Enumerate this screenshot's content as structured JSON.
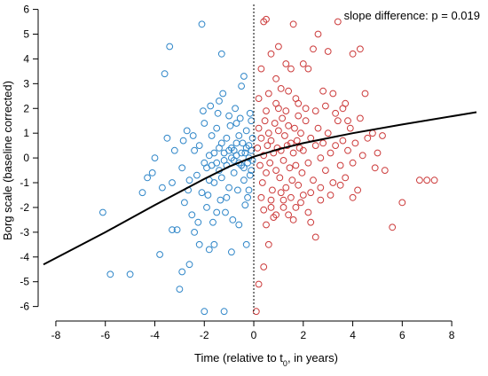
{
  "chart_data": {
    "type": "scatter",
    "annotation": "slope difference: p = 0.019",
    "xlabel_prefix": "Time (relative to t",
    "xlabel_sub": "0",
    "xlabel_suffix": ", in years)",
    "ylabel": "Borg scale (baseline corrected)",
    "xlim": [
      -8.5,
      9
    ],
    "ylim": [
      -6.3,
      6.2
    ],
    "xticks": [
      -8,
      -6,
      -4,
      -2,
      0,
      2,
      4,
      6,
      8
    ],
    "yticks": [
      -6,
      -5,
      -4,
      -3,
      -2,
      -1,
      0,
      1,
      2,
      3,
      4,
      5,
      6
    ],
    "reference_line_x": 0,
    "series": [
      {
        "color": "#2f86c8",
        "marker": "open-circle",
        "points": [
          [
            -6.1,
            -2.2
          ],
          [
            -5.8,
            -4.7
          ],
          [
            -5.0,
            -4.7
          ],
          [
            -4.5,
            -1.4
          ],
          [
            -4.1,
            -0.6
          ],
          [
            -3.8,
            -3.9
          ],
          [
            -3.6,
            3.4
          ],
          [
            -3.4,
            4.5
          ],
          [
            -3.3,
            -2.9
          ],
          [
            -3.1,
            -2.9
          ],
          [
            -3.0,
            -5.3
          ],
          [
            -2.9,
            -4.6
          ],
          [
            -2.7,
            1.1
          ],
          [
            -2.6,
            -4.3
          ],
          [
            -2.5,
            -2.3
          ],
          [
            -2.4,
            -3.0
          ],
          [
            -2.2,
            -3.5
          ],
          [
            -2.1,
            5.4
          ],
          [
            -2.0,
            -6.2
          ],
          [
            -1.9,
            -2.0
          ],
          [
            -1.8,
            -3.7
          ],
          [
            -1.7,
            0.9
          ],
          [
            -1.6,
            -3.5
          ],
          [
            -1.5,
            -2.2
          ],
          [
            -1.4,
            2.3
          ],
          [
            -1.3,
            4.2
          ],
          [
            -1.2,
            -6.2
          ],
          [
            -1.1,
            -1.6
          ],
          [
            -1.0,
            1.7
          ],
          [
            -0.9,
            -3.8
          ],
          [
            -0.8,
            0.3
          ],
          [
            -0.7,
            1.4
          ],
          [
            -0.6,
            -2.7
          ],
          [
            -0.5,
            2.9
          ],
          [
            -0.4,
            3.3
          ],
          [
            -0.3,
            -3.5
          ],
          [
            -0.2,
            -1.3
          ],
          [
            -0.1,
            1.5
          ],
          [
            -3.5,
            0.8
          ],
          [
            -3.2,
            0.3
          ],
          [
            -2.8,
            -1.8
          ],
          [
            -2.3,
            -0.7
          ],
          [
            -2.2,
            0.5
          ],
          [
            -2.0,
            1.4
          ],
          [
            -1.9,
            -0.4
          ],
          [
            -1.8,
            -0.9
          ],
          [
            -1.6,
            0.2
          ],
          [
            -1.5,
            1.2
          ],
          [
            -1.4,
            -0.5
          ],
          [
            -1.3,
            0.6
          ],
          [
            -1.2,
            -0.1
          ],
          [
            -1.1,
            0.8
          ],
          [
            -1.0,
            -1.2
          ],
          [
            -0.9,
            0.4
          ],
          [
            -0.8,
            -0.6
          ],
          [
            -0.7,
            0.1
          ],
          [
            -0.6,
            0.9
          ],
          [
            -0.5,
            -0.3
          ],
          [
            -0.45,
            0.6
          ],
          [
            -0.4,
            -0.9
          ],
          [
            -0.35,
            0.2
          ],
          [
            -0.3,
            1.1
          ],
          [
            -0.25,
            -0.2
          ],
          [
            -0.2,
            0.5
          ],
          [
            -0.15,
            -0.7
          ],
          [
            -0.1,
            0.3
          ],
          [
            -0.05,
            -0.1
          ],
          [
            -0.05,
            0.8
          ],
          [
            -0.1,
            -0.5
          ],
          [
            -0.2,
            0.0
          ],
          [
            -0.3,
            0.4
          ],
          [
            -0.4,
            -0.4
          ],
          [
            -0.5,
            0.2
          ],
          [
            -0.6,
            -0.2
          ],
          [
            -0.7,
            0.6
          ],
          [
            -0.8,
            -0.1
          ],
          [
            -0.9,
            0.0
          ],
          [
            -1.0,
            0.3
          ],
          [
            -1.1,
            -0.3
          ],
          [
            -1.2,
            0.2
          ],
          [
            -1.3,
            -0.8
          ],
          [
            -1.4,
            0.4
          ],
          [
            -1.5,
            -0.2
          ],
          [
            -1.6,
            -1.0
          ],
          [
            -1.7,
            -0.3
          ],
          [
            -1.8,
            0.1
          ],
          [
            -2.0,
            -0.2
          ],
          [
            -2.1,
            -1.4
          ],
          [
            -2.4,
            0.3
          ],
          [
            -2.6,
            -0.9
          ],
          [
            -2.9,
            -0.4
          ],
          [
            -3.3,
            -1.0
          ],
          [
            -3.7,
            -1.2
          ],
          [
            -4.0,
            0.0
          ],
          [
            -4.3,
            -0.8
          ],
          [
            -0.25,
            -1.6
          ],
          [
            -0.15,
            1.8
          ],
          [
            -0.35,
            -1.9
          ],
          [
            -0.55,
            1.6
          ],
          [
            -0.65,
            -1.3
          ],
          [
            -0.75,
            2.0
          ],
          [
            -0.85,
            -2.5
          ],
          [
            -0.95,
            1.3
          ],
          [
            -1.15,
            -2.2
          ],
          [
            -1.25,
            2.6
          ],
          [
            -1.35,
            -1.7
          ],
          [
            -1.45,
            1.8
          ],
          [
            -1.65,
            -2.6
          ],
          [
            -1.75,
            2.1
          ],
          [
            -1.85,
            -1.5
          ],
          [
            -2.05,
            1.9
          ],
          [
            -2.25,
            -2.6
          ],
          [
            -2.45,
            0.9
          ],
          [
            -2.65,
            -1.3
          ],
          [
            -2.85,
            0.7
          ]
        ]
      },
      {
        "color": "#cc3b3b",
        "marker": "open-circle",
        "points": [
          [
            0.1,
            -6.2
          ],
          [
            0.3,
            3.6
          ],
          [
            0.4,
            5.5
          ],
          [
            0.5,
            5.6
          ],
          [
            0.6,
            -3.5
          ],
          [
            0.7,
            4.2
          ],
          [
            0.9,
            3.2
          ],
          [
            1.0,
            4.5
          ],
          [
            1.1,
            2.8
          ],
          [
            1.3,
            3.8
          ],
          [
            1.5,
            3.6
          ],
          [
            1.6,
            5.4
          ],
          [
            1.8,
            2.2
          ],
          [
            2.0,
            3.8
          ],
          [
            2.2,
            3.6
          ],
          [
            2.4,
            4.4
          ],
          [
            2.6,
            5.0
          ],
          [
            2.7,
            -1.7
          ],
          [
            2.8,
            2.7
          ],
          [
            3.0,
            4.3
          ],
          [
            3.2,
            2.6
          ],
          [
            3.4,
            5.5
          ],
          [
            3.6,
            2.0
          ],
          [
            3.8,
            1.5
          ],
          [
            4.0,
            4.2
          ],
          [
            4.3,
            4.4
          ],
          [
            4.5,
            2.6
          ],
          [
            4.8,
            1.0
          ],
          [
            5.0,
            0.2
          ],
          [
            5.3,
            -0.5
          ],
          [
            5.6,
            -2.8
          ],
          [
            6.0,
            -1.8
          ],
          [
            6.7,
            -0.9
          ],
          [
            7.0,
            -0.9
          ],
          [
            7.3,
            -0.9
          ],
          [
            0.2,
            -5.1
          ],
          [
            0.4,
            -4.4
          ],
          [
            0.5,
            -2.7
          ],
          [
            0.7,
            -2.0
          ],
          [
            0.9,
            -2.3
          ],
          [
            1.2,
            -1.7
          ],
          [
            1.4,
            -2.3
          ],
          [
            1.7,
            -2.0
          ],
          [
            2.0,
            -1.5
          ],
          [
            2.3,
            -2.6
          ],
          [
            2.5,
            -3.2
          ],
          [
            0.15,
            0.4
          ],
          [
            0.2,
            1.2
          ],
          [
            0.25,
            -0.3
          ],
          [
            0.3,
            0.8
          ],
          [
            0.35,
            -1.0
          ],
          [
            0.4,
            0.1
          ],
          [
            0.45,
            1.5
          ],
          [
            0.5,
            -0.6
          ],
          [
            0.55,
            0.5
          ],
          [
            0.6,
            1.0
          ],
          [
            0.65,
            -0.2
          ],
          [
            0.7,
            0.7
          ],
          [
            0.75,
            -1.3
          ],
          [
            0.8,
            0.2
          ],
          [
            0.85,
            1.4
          ],
          [
            0.9,
            -0.5
          ],
          [
            0.95,
            0.4
          ],
          [
            1.0,
            1.1
          ],
          [
            1.05,
            -0.8
          ],
          [
            1.1,
            0.3
          ],
          [
            1.15,
            1.6
          ],
          [
            1.2,
            -0.1
          ],
          [
            1.25,
            0.9
          ],
          [
            1.3,
            -1.2
          ],
          [
            1.35,
            0.5
          ],
          [
            1.4,
            1.3
          ],
          [
            1.45,
            -0.4
          ],
          [
            1.5,
            0.6
          ],
          [
            1.55,
            -0.9
          ],
          [
            1.6,
            0.2
          ],
          [
            1.65,
            1.2
          ],
          [
            1.7,
            -0.3
          ],
          [
            1.75,
            0.7
          ],
          [
            1.8,
            -1.1
          ],
          [
            1.85,
            0.4
          ],
          [
            1.9,
            1.0
          ],
          [
            1.95,
            -0.6
          ],
          [
            2.0,
            0.3
          ],
          [
            2.1,
            1.5
          ],
          [
            2.2,
            -0.2
          ],
          [
            2.3,
            0.8
          ],
          [
            2.4,
            -0.9
          ],
          [
            2.5,
            0.5
          ],
          [
            2.6,
            1.2
          ],
          [
            2.7,
            0.0
          ],
          [
            2.8,
            0.6
          ],
          [
            2.9,
            -0.5
          ],
          [
            3.0,
            1.0
          ],
          [
            3.1,
            0.2
          ],
          [
            3.2,
            -1.0
          ],
          [
            3.3,
            0.5
          ],
          [
            3.4,
            1.5
          ],
          [
            3.5,
            -0.3
          ],
          [
            3.6,
            0.7
          ],
          [
            3.7,
            -0.8
          ],
          [
            3.8,
            0.3
          ],
          [
            3.9,
            1.2
          ],
          [
            4.0,
            -0.2
          ],
          [
            4.1,
            0.6
          ],
          [
            4.2,
            -1.3
          ],
          [
            4.4,
            0.1
          ],
          [
            4.6,
            0.8
          ],
          [
            4.9,
            -0.4
          ],
          [
            5.2,
            0.9
          ],
          [
            0.3,
            -1.6
          ],
          [
            0.5,
            1.9
          ],
          [
            0.7,
            -1.7
          ],
          [
            0.9,
            2.2
          ],
          [
            1.1,
            -1.4
          ],
          [
            1.3,
            1.9
          ],
          [
            1.5,
            -1.6
          ],
          [
            1.7,
            2.4
          ],
          [
            1.9,
            -1.8
          ],
          [
            2.1,
            2.0
          ],
          [
            2.3,
            -1.4
          ],
          [
            2.5,
            1.9
          ],
          [
            2.7,
            -1.2
          ],
          [
            2.9,
            2.1
          ],
          [
            3.1,
            -1.5
          ],
          [
            3.3,
            1.8
          ],
          [
            3.5,
            -1.1
          ],
          [
            3.7,
            2.2
          ],
          [
            4.0,
            -1.6
          ],
          [
            4.3,
            1.6
          ],
          [
            0.2,
            2.4
          ],
          [
            0.4,
            -2.1
          ],
          [
            0.6,
            2.6
          ],
          [
            0.8,
            -2.4
          ],
          [
            1.0,
            2.0
          ],
          [
            1.2,
            -2.0
          ],
          [
            1.4,
            2.7
          ],
          [
            1.6,
            -2.5
          ],
          [
            1.8,
            1.7
          ],
          [
            2.2,
            -2.2
          ]
        ]
      },
      {
        "type": "line",
        "color": "#000000",
        "points": [
          [
            -8.5,
            -4.3
          ],
          [
            -6,
            -3.0
          ],
          [
            -4,
            -1.9
          ],
          [
            -2,
            -0.85
          ],
          [
            -1,
            -0.35
          ],
          [
            0,
            0.05
          ],
          [
            1,
            0.35
          ],
          [
            2,
            0.6
          ],
          [
            4,
            1.0
          ],
          [
            6,
            1.35
          ],
          [
            9,
            1.85
          ]
        ]
      }
    ]
  }
}
